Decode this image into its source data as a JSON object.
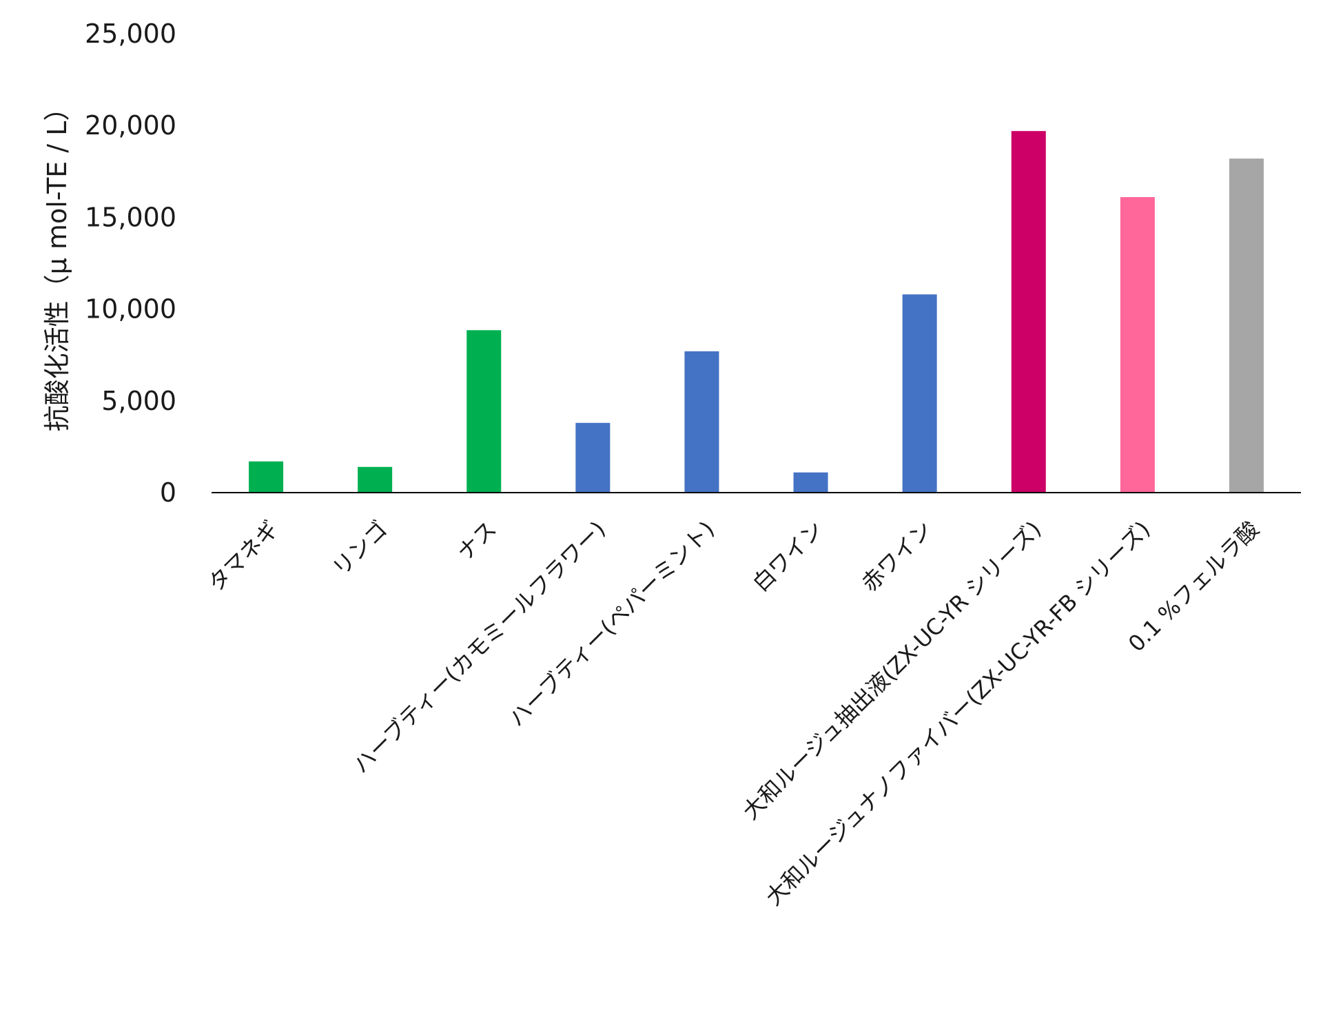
{
  "chart_data": {
    "type": "bar",
    "title": "",
    "xlabel": "",
    "ylabel": "抗酸化活性（μ mol-TE / L）",
    "ylim": [
      0,
      25000
    ],
    "yticks": [
      "0",
      "5,000",
      "10,000",
      "15,000",
      "20,000",
      "25,000"
    ],
    "ytick_values": [
      0,
      5000,
      10000,
      15000,
      20000,
      25000
    ],
    "grid": false,
    "legend": "none",
    "categories": [
      "タマネギ",
      "リンゴ",
      "ナス",
      "ハーブティー(カモミールフラワー)",
      "ハーブティー(ペパーミント)",
      "白ワイン",
      "赤ワイン",
      "大和ルージュ抽出液(ZX-UC-YR シリーズ)",
      "大和ルージュナノファイバー(ZX-UC-YR-FB シリーズ)",
      "0.1 %フェルラ酸"
    ],
    "values": [
      1700,
      1400,
      8850,
      3800,
      7700,
      1100,
      10800,
      19700,
      16100,
      18200
    ],
    "colors": [
      "#00b050",
      "#00b050",
      "#00b050",
      "#4472c4",
      "#4472c4",
      "#4472c4",
      "#4472c4",
      "#cc0066",
      "#ff6699",
      "#a6a6a6"
    ]
  }
}
